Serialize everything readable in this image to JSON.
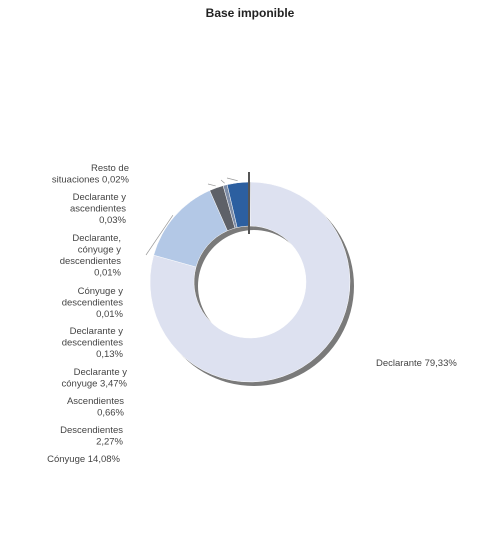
{
  "chart_data": {
    "type": "pie",
    "variant": "donut",
    "title": "Base imponible",
    "slices": [
      {
        "name": "Declarante",
        "value": 79.33,
        "display": "Declarante 79,33%",
        "color": "#dde1f0"
      },
      {
        "name": "Cónyuge",
        "value": 14.08,
        "display": "Cónyuge 14,08%",
        "color": "#b3c8e6"
      },
      {
        "name": "Descendientes",
        "value": 2.27,
        "display": "Descendientes 2,27%",
        "color": "#5e6168"
      },
      {
        "name": "Ascendientes",
        "value": 0.66,
        "display": "Ascendientes 0,66%",
        "color": "#7d8ca6"
      },
      {
        "name": "Declarante y cónyuge",
        "value": 3.47,
        "display": "Declarante y cónyuge 3,47%",
        "color": "#2c5fa0"
      },
      {
        "name": "Declarante y descendientes",
        "value": 0.13,
        "display": "Declarante y descendientes 0,13%",
        "color": "#4f9fd6"
      },
      {
        "name": "Cónyuge y descendientes",
        "value": 0.01,
        "display": "Cónyuge y descendientes 0,01%",
        "color": "#1a3b72"
      },
      {
        "name": "Declarante, cónyuge y descendientes",
        "value": 0.01,
        "display": "Declarante, cónyuge y descendientes 0,01%",
        "color": "#3a4f7a"
      },
      {
        "name": "Declarante y ascendientes",
        "value": 0.03,
        "display": "Declarante y ascendientes 0,03%",
        "color": "#8aa0c8"
      },
      {
        "name": "Resto de situaciones",
        "value": 0.02,
        "display": "Resto de situaciones 0,02%",
        "color": "#444444"
      }
    ]
  }
}
